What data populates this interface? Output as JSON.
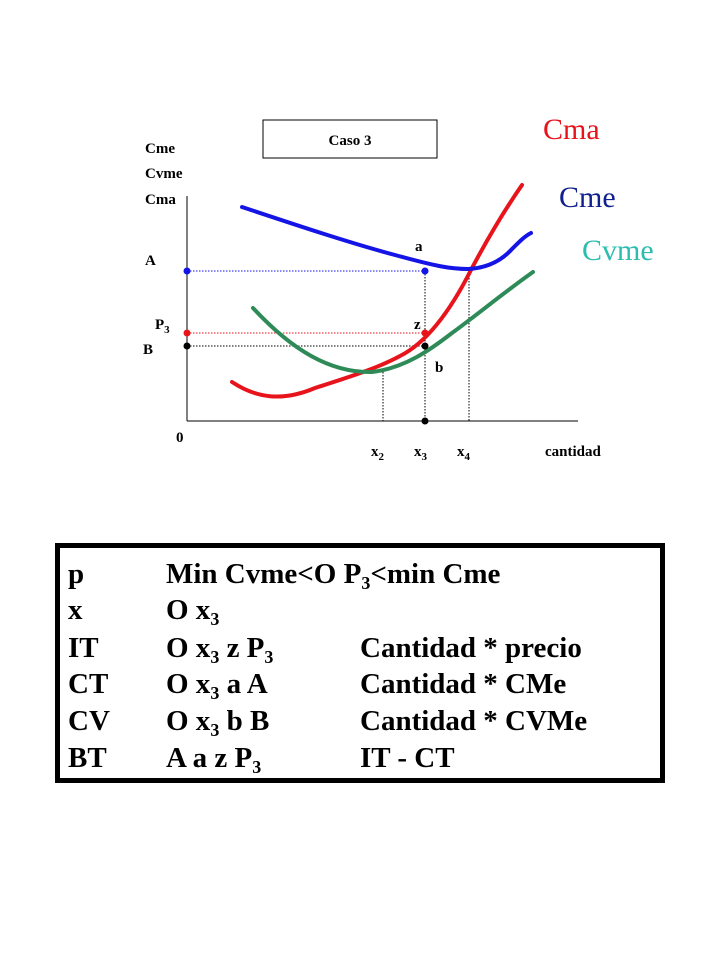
{
  "diagram": {
    "case_label": "Caso 3",
    "y_axis_labels": [
      "Cme",
      "Cvme",
      "Cma"
    ],
    "curve_labels": {
      "cma": {
        "text": "Cma",
        "color": "#e8141c"
      },
      "cme": {
        "text": "Cme",
        "color": "#10208c"
      },
      "cvme": {
        "text": "Cvme",
        "color": "#2cbcb0"
      }
    },
    "curve_colors": {
      "cma": "#e8141c",
      "cme": "#1414e6",
      "cvme": "#2e8b57"
    },
    "point_labels": {
      "A": "A",
      "P": "P",
      "P_sub": "3",
      "B": "B",
      "a": "a",
      "z": "z",
      "b": "b",
      "origin": "0"
    },
    "x_labels": [
      {
        "base": "x",
        "sub": "2"
      },
      {
        "base": "x",
        "sub": "3"
      },
      {
        "base": "x",
        "sub": "4"
      }
    ],
    "x_axis_label": "cantidad",
    "marker_colors": {
      "A": "#1414e6",
      "P3": "#e8141c",
      "B": "#000000",
      "a": "#1414e6",
      "z": "#e8141c",
      "b": "#000000",
      "x3": "#000000"
    }
  },
  "table": {
    "rows": [
      {
        "c1": "p",
        "c2_pre": "Min Cvme<O P",
        "c2_sub": "3",
        "c2_post": "<min Cme",
        "c3": ""
      },
      {
        "c1": "x",
        "c2_pre": "O x",
        "c2_sub": "3",
        "c2_post": "",
        "c3": ""
      },
      {
        "c1": "IT",
        "c2_pre": "O x",
        "c2_sub": "3",
        "c2_post": " z P",
        "c2_sub2": "3",
        "c3": "Cantidad * precio"
      },
      {
        "c1": "CT",
        "c2_pre": "O x",
        "c2_sub": "3",
        "c2_post": " a A",
        "c3": "Cantidad * CMe"
      },
      {
        "c1": "CV",
        "c2_pre": "O x",
        "c2_sub": "3",
        "c2_post": " b B",
        "c3": "Cantidad * CVMe"
      },
      {
        "c1": "BT",
        "c2_pre": "A a z P",
        "c2_sub": "3",
        "c2_post": "",
        "c3": "IT - CT"
      }
    ]
  }
}
